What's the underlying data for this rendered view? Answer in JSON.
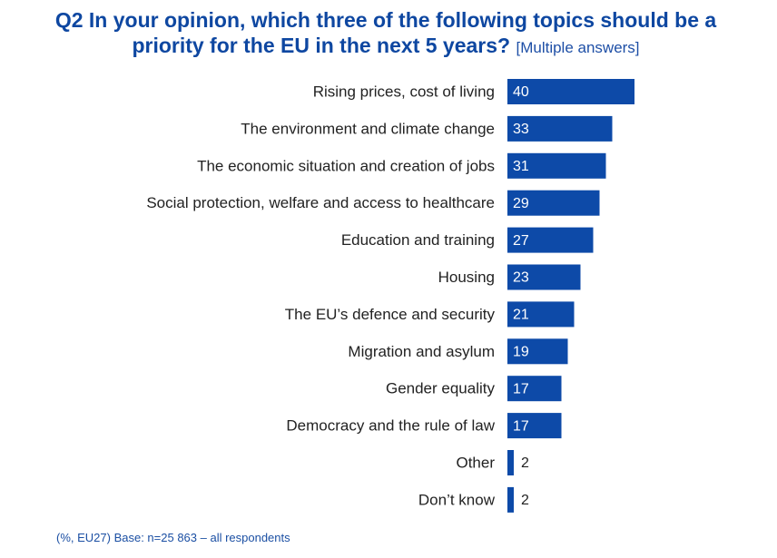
{
  "title": "Q2 In your opinion, which three of the following topics should be a priority for the EU in the next 5 years?",
  "title_note": "[Multiple answers]",
  "footer": "(%, EU27)  Base: n=25 863 – all respondents",
  "colors": {
    "bar": "#0d4aa8",
    "title": "#0e47a1",
    "label": "#222222",
    "value_inside": "#ffffff",
    "value_outside": "#222222"
  },
  "chart_data": {
    "type": "bar",
    "orientation": "horizontal",
    "categories": [
      "Rising prices, cost of living",
      "The environment and climate change",
      "The economic situation and creation of jobs",
      "Social protection, welfare and access to healthcare",
      "Education and training",
      "Housing",
      "The EU’s defence and security",
      "Migration and asylum",
      "Gender equality",
      "Democracy and the rule of law",
      "Other",
      "Don’t know"
    ],
    "values": [
      40,
      33,
      31,
      29,
      27,
      23,
      21,
      19,
      17,
      17,
      2,
      2
    ],
    "xlim": [
      0,
      40
    ],
    "grid": false,
    "legend": "none"
  }
}
